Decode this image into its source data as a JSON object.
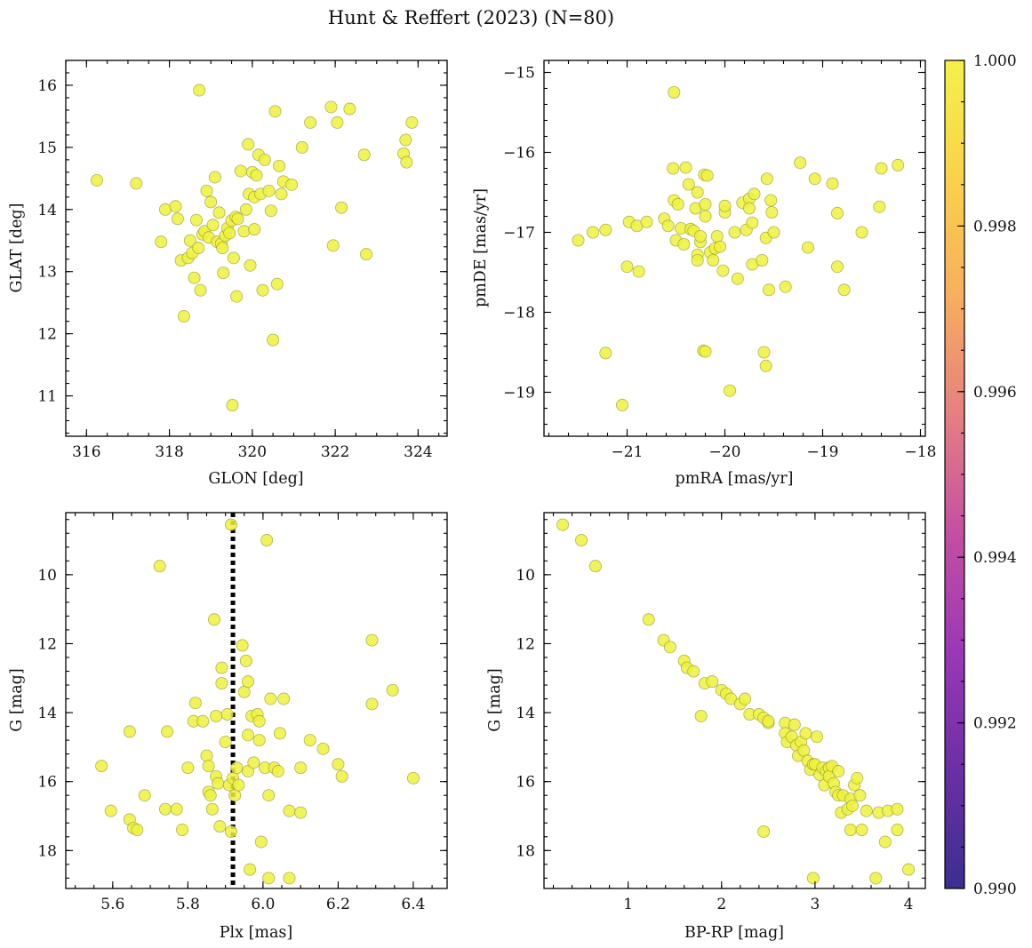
{
  "figure": {
    "title": "Hunt & Reffert (2023) (N=80)"
  },
  "colorbar": {
    "min": 0.99,
    "max": 1.0,
    "ticks": [
      "0.990",
      "0.992",
      "0.994",
      "0.996",
      "0.998",
      "1.000"
    ],
    "tick_values": [
      0.99,
      0.992,
      0.994,
      0.996,
      0.998,
      1.0
    ],
    "colormap": "plasma",
    "stops": [
      "#3b2f8f",
      "#6b2fa6",
      "#9a38b5",
      "#c44fa2",
      "#e57f82",
      "#f7ae5e",
      "#f9d24a",
      "#f4f14a"
    ]
  },
  "style": {
    "point_color": "#eef23c",
    "point_edge": "#8a8a30",
    "line_color": "#000000"
  },
  "chart_data": [
    {
      "id": "glon-glat",
      "type": "scatter",
      "xlabel": "GLON [deg]",
      "ylabel": "GLAT [deg]",
      "xlim": [
        315.5,
        324.7
      ],
      "ylim": [
        10.35,
        16.4
      ],
      "xticks": [
        316,
        318,
        320,
        322,
        324
      ],
      "xtick_labels": [
        "316",
        "318",
        "320",
        "322",
        "324"
      ],
      "yticks": [
        11,
        12,
        13,
        14,
        15,
        16
      ],
      "ytick_labels": [
        "11",
        "12",
        "13",
        "14",
        "15",
        "16"
      ],
      "xminor": 0.5,
      "yminor": 0.2,
      "invert_y": false,
      "points": [
        [
          316.25,
          14.47
        ],
        [
          317.2,
          14.42
        ],
        [
          317.8,
          13.48
        ],
        [
          317.9,
          14.0
        ],
        [
          318.15,
          14.05
        ],
        [
          318.2,
          13.85
        ],
        [
          318.28,
          13.18
        ],
        [
          318.35,
          12.28
        ],
        [
          318.45,
          13.22
        ],
        [
          318.5,
          13.5
        ],
        [
          318.55,
          13.3
        ],
        [
          318.6,
          12.9
        ],
        [
          318.65,
          13.83
        ],
        [
          318.7,
          13.38
        ],
        [
          318.72,
          15.92
        ],
        [
          318.75,
          12.7
        ],
        [
          318.8,
          13.6
        ],
        [
          318.85,
          13.65
        ],
        [
          318.9,
          14.3
        ],
        [
          318.95,
          13.55
        ],
        [
          319.0,
          14.12
        ],
        [
          319.05,
          13.75
        ],
        [
          319.1,
          14.52
        ],
        [
          319.15,
          13.48
        ],
        [
          319.2,
          13.95
        ],
        [
          319.25,
          13.45
        ],
        [
          319.28,
          13.38
        ],
        [
          319.3,
          12.98
        ],
        [
          319.35,
          13.58
        ],
        [
          319.4,
          13.7
        ],
        [
          319.45,
          13.62
        ],
        [
          319.5,
          13.82
        ],
        [
          319.52,
          10.85
        ],
        [
          319.55,
          13.22
        ],
        [
          319.6,
          13.88
        ],
        [
          319.62,
          12.6
        ],
        [
          319.65,
          13.85
        ],
        [
          319.72,
          14.62
        ],
        [
          319.8,
          13.65
        ],
        [
          319.85,
          14.0
        ],
        [
          319.9,
          15.05
        ],
        [
          319.92,
          14.25
        ],
        [
          319.95,
          13.1
        ],
        [
          320.0,
          14.6
        ],
        [
          320.05,
          14.2
        ],
        [
          320.05,
          13.68
        ],
        [
          320.1,
          14.55
        ],
        [
          320.15,
          14.88
        ],
        [
          320.2,
          14.25
        ],
        [
          320.25,
          12.7
        ],
        [
          320.3,
          14.8
        ],
        [
          320.4,
          14.3
        ],
        [
          320.45,
          13.98
        ],
        [
          320.5,
          11.9
        ],
        [
          320.55,
          15.58
        ],
        [
          320.6,
          12.8
        ],
        [
          320.65,
          14.7
        ],
        [
          320.7,
          14.25
        ],
        [
          320.75,
          14.45
        ],
        [
          320.95,
          14.4
        ],
        [
          321.2,
          15.0
        ],
        [
          321.4,
          15.4
        ],
        [
          321.9,
          15.65
        ],
        [
          321.95,
          13.42
        ],
        [
          322.05,
          15.4
        ],
        [
          322.15,
          14.03
        ],
        [
          322.35,
          15.62
        ],
        [
          322.7,
          14.88
        ],
        [
          322.75,
          13.28
        ],
        [
          323.65,
          14.9
        ],
        [
          323.7,
          15.12
        ],
        [
          323.72,
          14.76
        ],
        [
          323.85,
          15.4
        ]
      ]
    },
    {
      "id": "pmra-pmde",
      "type": "scatter",
      "xlabel": "pmRA [mas/yr]",
      "ylabel": "pmDE [mas/yr]",
      "xlim": [
        -21.85,
        -17.95
      ],
      "ylim": [
        -19.55,
        -14.85
      ],
      "xticks": [
        -21,
        -20,
        -19,
        -18
      ],
      "xtick_labels": [
        "−21",
        "−20",
        "−19",
        "−18"
      ],
      "yticks": [
        -19,
        -18,
        -17,
        -16,
        -15
      ],
      "ytick_labels": [
        "−19",
        "−18",
        "−17",
        "−16",
        "−15"
      ],
      "xminor": 0.2,
      "yminor": 0.2,
      "invert_y": false,
      "points": [
        [
          -21.5,
          -17.1
        ],
        [
          -21.35,
          -17.0
        ],
        [
          -21.22,
          -16.97
        ],
        [
          -21.22,
          -18.51
        ],
        [
          -21.05,
          -19.16
        ],
        [
          -21.0,
          -17.43
        ],
        [
          -20.98,
          -16.87
        ],
        [
          -20.9,
          -16.92
        ],
        [
          -20.88,
          -17.49
        ],
        [
          -20.8,
          -16.87
        ],
        [
          -20.62,
          -16.83
        ],
        [
          -20.58,
          -16.92
        ],
        [
          -20.53,
          -16.2
        ],
        [
          -20.52,
          -16.6
        ],
        [
          -20.52,
          -15.25
        ],
        [
          -20.5,
          -17.1
        ],
        [
          -20.48,
          -16.65
        ],
        [
          -20.45,
          -16.95
        ],
        [
          -20.42,
          -17.15
        ],
        [
          -20.4,
          -16.19
        ],
        [
          -20.37,
          -16.4
        ],
        [
          -20.35,
          -16.96
        ],
        [
          -20.32,
          -16.98
        ],
        [
          -20.3,
          -16.7
        ],
        [
          -20.28,
          -16.5
        ],
        [
          -20.28,
          -17.28
        ],
        [
          -20.28,
          -17.35
        ],
        [
          -20.25,
          -17.12
        ],
        [
          -20.25,
          -17.05
        ],
        [
          -20.22,
          -18.48
        ],
        [
          -20.21,
          -16.28
        ],
        [
          -20.2,
          -16.65
        ],
        [
          -20.2,
          -16.8
        ],
        [
          -20.2,
          -18.49
        ],
        [
          -20.18,
          -16.29
        ],
        [
          -20.15,
          -17.25
        ],
        [
          -20.12,
          -17.35
        ],
        [
          -20.1,
          -17.2
        ],
        [
          -20.08,
          -17.05
        ],
        [
          -20.05,
          -17.18
        ],
        [
          -20.02,
          -17.48
        ],
        [
          -20.0,
          -16.75
        ],
        [
          -20.0,
          -16.67
        ],
        [
          -19.95,
          -18.98
        ],
        [
          -19.9,
          -17.0
        ],
        [
          -19.87,
          -17.58
        ],
        [
          -19.82,
          -16.63
        ],
        [
          -19.78,
          -16.97
        ],
        [
          -19.75,
          -16.58
        ],
        [
          -19.75,
          -16.7
        ],
        [
          -19.72,
          -16.88
        ],
        [
          -19.72,
          -17.4
        ],
        [
          -19.7,
          -16.52
        ],
        [
          -19.62,
          -17.35
        ],
        [
          -19.6,
          -18.5
        ],
        [
          -19.58,
          -17.07
        ],
        [
          -19.58,
          -18.67
        ],
        [
          -19.57,
          -16.33
        ],
        [
          -19.55,
          -17.72
        ],
        [
          -19.53,
          -16.6
        ],
        [
          -19.52,
          -16.75
        ],
        [
          -19.5,
          -17.0
        ],
        [
          -19.38,
          -17.68
        ],
        [
          -19.23,
          -16.13
        ],
        [
          -19.15,
          -17.19
        ],
        [
          -19.08,
          -16.33
        ],
        [
          -18.9,
          -16.39
        ],
        [
          -18.85,
          -16.76
        ],
        [
          -18.85,
          -17.43
        ],
        [
          -18.78,
          -17.72
        ],
        [
          -18.6,
          -17.0
        ],
        [
          -18.42,
          -16.68
        ],
        [
          -18.4,
          -16.2
        ],
        [
          -18.23,
          -16.16
        ]
      ]
    },
    {
      "id": "plx-g",
      "type": "scatter",
      "xlabel": "Plx [mas]",
      "ylabel": "G [mag]",
      "xlim": [
        5.475,
        6.49
      ],
      "ylim": [
        8.2,
        19.1
      ],
      "xticks": [
        5.6,
        5.8,
        6.0,
        6.2,
        6.4
      ],
      "xtick_labels": [
        "5.6",
        "5.8",
        "6.0",
        "6.2",
        "6.4"
      ],
      "yticks": [
        10,
        12,
        14,
        16,
        18
      ],
      "ytick_labels": [
        "10",
        "12",
        "14",
        "16",
        "18"
      ],
      "xminor": 0.05,
      "yminor": 0.4,
      "invert_y": true,
      "vline": {
        "x": 5.92,
        "style": "dotted"
      },
      "points": [
        [
          5.57,
          15.55
        ],
        [
          5.595,
          16.85
        ],
        [
          5.645,
          14.55
        ],
        [
          5.645,
          17.1
        ],
        [
          5.655,
          17.35
        ],
        [
          5.665,
          17.4
        ],
        [
          5.685,
          16.4
        ],
        [
          5.725,
          9.75
        ],
        [
          5.74,
          16.8
        ],
        [
          5.745,
          14.55
        ],
        [
          5.77,
          16.8
        ],
        [
          5.785,
          17.4
        ],
        [
          5.8,
          15.6
        ],
        [
          5.815,
          14.25
        ],
        [
          5.82,
          13.72
        ],
        [
          5.84,
          14.25
        ],
        [
          5.85,
          15.25
        ],
        [
          5.855,
          15.55
        ],
        [
          5.855,
          16.3
        ],
        [
          5.86,
          16.4
        ],
        [
          5.865,
          16.8
        ],
        [
          5.87,
          11.3
        ],
        [
          5.875,
          14.1
        ],
        [
          5.875,
          15.85
        ],
        [
          5.88,
          16.05
        ],
        [
          5.885,
          17.3
        ],
        [
          5.89,
          12.7
        ],
        [
          5.89,
          13.15
        ],
        [
          5.9,
          14.85
        ],
        [
          5.905,
          14.05
        ],
        [
          5.91,
          16.1
        ],
        [
          5.915,
          8.55
        ],
        [
          5.915,
          17.45
        ],
        [
          5.92,
          15.9
        ],
        [
          5.925,
          16.4
        ],
        [
          5.93,
          15.6
        ],
        [
          5.935,
          16.1
        ],
        [
          5.945,
          12.05
        ],
        [
          5.95,
          13.4
        ],
        [
          5.955,
          12.5
        ],
        [
          5.96,
          13.1
        ],
        [
          5.96,
          14.65
        ],
        [
          5.96,
          15.7
        ],
        [
          5.965,
          18.55
        ],
        [
          5.97,
          14.1
        ],
        [
          5.975,
          15.45
        ],
        [
          5.985,
          14.05
        ],
        [
          5.99,
          14.25
        ],
        [
          5.99,
          14.8
        ],
        [
          5.995,
          17.75
        ],
        [
          6.005,
          15.6
        ],
        [
          6.01,
          9.0
        ],
        [
          6.015,
          18.8
        ],
        [
          6.015,
          16.4
        ],
        [
          6.02,
          13.6
        ],
        [
          6.03,
          15.6
        ],
        [
          6.04,
          15.7
        ],
        [
          6.045,
          14.6
        ],
        [
          6.055,
          13.6
        ],
        [
          6.07,
          16.85
        ],
        [
          6.07,
          18.8
        ],
        [
          6.1,
          15.6
        ],
        [
          6.1,
          16.9
        ],
        [
          6.125,
          14.8
        ],
        [
          6.16,
          15.05
        ],
        [
          6.2,
          15.5
        ],
        [
          6.21,
          15.85
        ],
        [
          6.29,
          11.9
        ],
        [
          6.29,
          13.75
        ],
        [
          6.345,
          13.35
        ],
        [
          6.4,
          15.9
        ]
      ]
    },
    {
      "id": "bprp-g",
      "type": "scatter",
      "xlabel": "BP-RP [mag]",
      "ylabel": "G [mag]",
      "xlim": [
        0.1,
        4.18
      ],
      "ylim": [
        8.2,
        19.1
      ],
      "xticks": [
        1,
        2,
        3,
        4
      ],
      "xtick_labels": [
        "1",
        "2",
        "3",
        "4"
      ],
      "yticks": [
        10,
        12,
        14,
        16,
        18
      ],
      "ytick_labels": [
        "10",
        "12",
        "14",
        "16",
        "18"
      ],
      "xminor": 0.2,
      "yminor": 0.4,
      "invert_y": true,
      "points": [
        [
          0.3,
          8.55
        ],
        [
          0.5,
          9.0
        ],
        [
          0.65,
          9.75
        ],
        [
          1.22,
          11.3
        ],
        [
          1.38,
          11.9
        ],
        [
          1.45,
          12.1
        ],
        [
          1.6,
          12.5
        ],
        [
          1.63,
          12.7
        ],
        [
          1.7,
          12.8
        ],
        [
          1.78,
          14.1
        ],
        [
          1.82,
          13.15
        ],
        [
          1.9,
          13.1
        ],
        [
          2.0,
          13.35
        ],
        [
          2.05,
          13.45
        ],
        [
          2.1,
          13.6
        ],
        [
          2.2,
          13.75
        ],
        [
          2.25,
          13.6
        ],
        [
          2.3,
          14.05
        ],
        [
          2.4,
          14.05
        ],
        [
          2.45,
          14.15
        ],
        [
          2.45,
          17.45
        ],
        [
          2.5,
          14.3
        ],
        [
          2.5,
          14.25
        ],
        [
          2.68,
          14.3
        ],
        [
          2.68,
          14.6
        ],
        [
          2.7,
          14.85
        ],
        [
          2.75,
          14.7
        ],
        [
          2.78,
          14.35
        ],
        [
          2.8,
          14.95
        ],
        [
          2.82,
          15.25
        ],
        [
          2.85,
          14.85
        ],
        [
          2.88,
          15.1
        ],
        [
          2.9,
          14.6
        ],
        [
          2.92,
          15.4
        ],
        [
          2.95,
          15.65
        ],
        [
          2.98,
          15.5
        ],
        [
          2.98,
          18.8
        ],
        [
          3.0,
          15.5
        ],
        [
          3.02,
          14.7
        ],
        [
          3.05,
          15.8
        ],
        [
          3.08,
          15.6
        ],
        [
          3.1,
          16.1
        ],
        [
          3.12,
          15.7
        ],
        [
          3.15,
          15.6
        ],
        [
          3.15,
          15.85
        ],
        [
          3.18,
          15.55
        ],
        [
          3.2,
          16.05
        ],
        [
          3.22,
          16.3
        ],
        [
          3.25,
          15.7
        ],
        [
          3.25,
          16.4
        ],
        [
          3.28,
          16.9
        ],
        [
          3.3,
          16.4
        ],
        [
          3.35,
          16.8
        ],
        [
          3.38,
          16.5
        ],
        [
          3.38,
          17.4
        ],
        [
          3.4,
          16.7
        ],
        [
          3.42,
          16.1
        ],
        [
          3.45,
          15.9
        ],
        [
          3.48,
          16.4
        ],
        [
          3.5,
          17.4
        ],
        [
          3.55,
          16.85
        ],
        [
          3.65,
          18.8
        ],
        [
          3.68,
          16.9
        ],
        [
          3.75,
          17.75
        ],
        [
          3.78,
          16.85
        ],
        [
          3.88,
          16.8
        ],
        [
          3.88,
          17.4
        ],
        [
          4.0,
          18.55
        ]
      ]
    }
  ]
}
